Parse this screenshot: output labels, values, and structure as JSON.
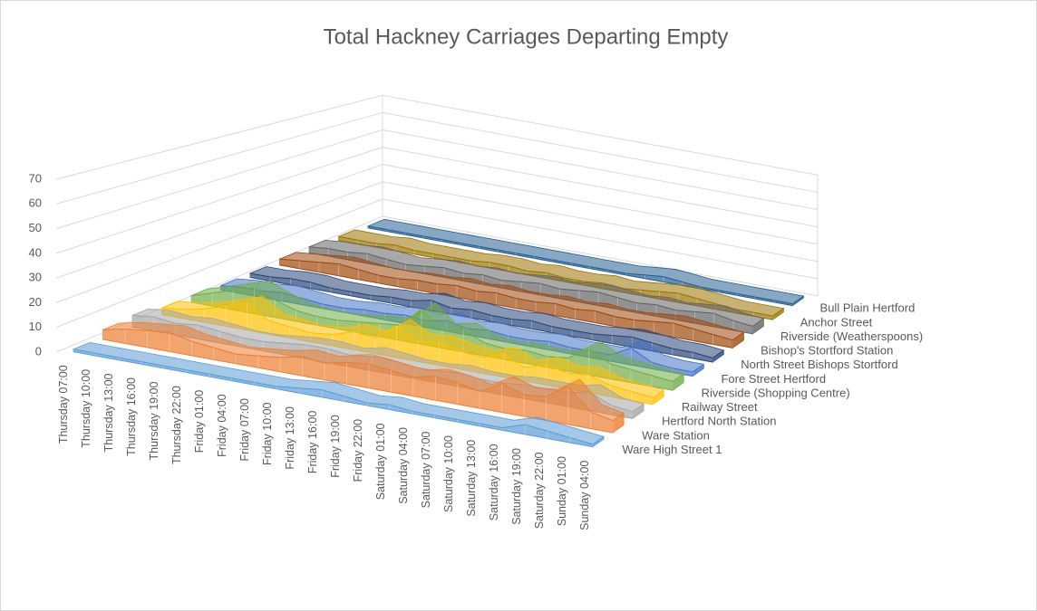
{
  "chart_data": {
    "type": "area3d",
    "title": "Total Hackney Carriages Departing Empty",
    "categories": [
      "Thursday 07:00",
      "Thursday 10:00",
      "Thursday 13:00",
      "Thursday 16:00",
      "Thursday 19:00",
      "Thursday 22:00",
      "Friday 01:00",
      "Friday 04:00",
      "Friday 07:00",
      "Friday 10:00",
      "Friday 13:00",
      "Friday 16:00",
      "Friday 19:00",
      "Friday 22:00",
      "Saturday 01:00",
      "Saturday 04:00",
      "Saturday 07:00",
      "Saturday 10:00",
      "Saturday 13:00",
      "Saturday 16:00",
      "Saturday 19:00",
      "Saturday 22:00",
      "Sunday 01:00",
      "Sunday 04:00"
    ],
    "ylim": [
      0,
      70
    ],
    "yticks": [
      0,
      10,
      20,
      30,
      40,
      50,
      60,
      70
    ],
    "grid": true,
    "series": [
      {
        "name": "Ware High Street 1",
        "color": "#5b9bd5",
        "values": [
          1,
          1,
          1,
          1,
          1,
          1,
          1,
          1,
          1,
          1,
          2,
          3,
          2,
          1,
          2,
          1,
          1,
          1,
          1,
          1,
          4,
          3,
          2,
          1
        ]
      },
      {
        "name": "Ware Station",
        "color": "#ed7d31",
        "values": [
          4,
          6,
          7,
          8,
          6,
          5,
          4,
          5,
          6,
          8,
          7,
          9,
          10,
          9,
          8,
          10,
          9,
          7,
          12,
          9,
          10,
          16,
          7,
          5
        ]
      },
      {
        "name": "Hertford North Station",
        "color": "#a5a5a5",
        "values": [
          5,
          6,
          5,
          6,
          5,
          4,
          4,
          5,
          6,
          6,
          5,
          7,
          6,
          5,
          5,
          6,
          5,
          5,
          6,
          6,
          6,
          8,
          4,
          3
        ]
      },
      {
        "name": "Railway Street",
        "color": "#ffc000",
        "values": [
          3,
          4,
          6,
          9,
          12,
          6,
          5,
          4,
          5,
          8,
          7,
          14,
          9,
          10,
          8,
          7,
          10,
          6,
          9,
          7,
          8,
          5,
          4,
          3
        ]
      },
      {
        "name": "Riverside (Shopping Centre)",
        "color": "#70ad47",
        "values": [
          3,
          6,
          9,
          12,
          8,
          5,
          4,
          4,
          5,
          6,
          7,
          16,
          8,
          10,
          6,
          5,
          6,
          5,
          6,
          12,
          7,
          6,
          5,
          4
        ]
      },
      {
        "name": "Fore Street Hertford",
        "color": "#4472c4",
        "values": [
          2,
          3,
          3,
          4,
          3,
          2,
          2,
          3,
          3,
          4,
          3,
          5,
          3,
          4,
          3,
          3,
          4,
          3,
          3,
          3,
          8,
          3,
          2,
          2
        ]
      },
      {
        "name": "North Street Bishops Stortford",
        "color": "#264478",
        "values": [
          2,
          2,
          3,
          3,
          2,
          2,
          2,
          3,
          3,
          5,
          3,
          4,
          3,
          3,
          4,
          3,
          3,
          3,
          4,
          5,
          4,
          3,
          3,
          2
        ]
      },
      {
        "name": "Bishop's Stortford Station",
        "color": "#9e480e",
        "values": [
          3,
          4,
          5,
          6,
          5,
          4,
          4,
          5,
          5,
          6,
          5,
          6,
          5,
          5,
          6,
          5,
          6,
          5,
          5,
          6,
          7,
          6,
          5,
          4
        ]
      },
      {
        "name": "Riverside (Weatherspoons)",
        "color": "#636363",
        "values": [
          3,
          4,
          4,
          5,
          4,
          3,
          4,
          5,
          4,
          5,
          4,
          5,
          6,
          5,
          6,
          7,
          6,
          5,
          6,
          5,
          6,
          7,
          5,
          4
        ]
      },
      {
        "name": "Anchor Street",
        "color": "#997300",
        "values": [
          2,
          2,
          2,
          3,
          2,
          2,
          2,
          2,
          3,
          3,
          2,
          3,
          2,
          2,
          3,
          2,
          3,
          4,
          5,
          4,
          3,
          2,
          2,
          2
        ]
      },
      {
        "name": "Bull Plain Hertford",
        "color": "#255e91",
        "values": [
          1,
          1,
          1,
          1,
          1,
          1,
          1,
          1,
          1,
          1,
          1,
          1,
          1,
          1,
          1,
          2,
          3,
          2,
          1,
          1,
          1,
          1,
          1,
          1
        ]
      }
    ]
  }
}
